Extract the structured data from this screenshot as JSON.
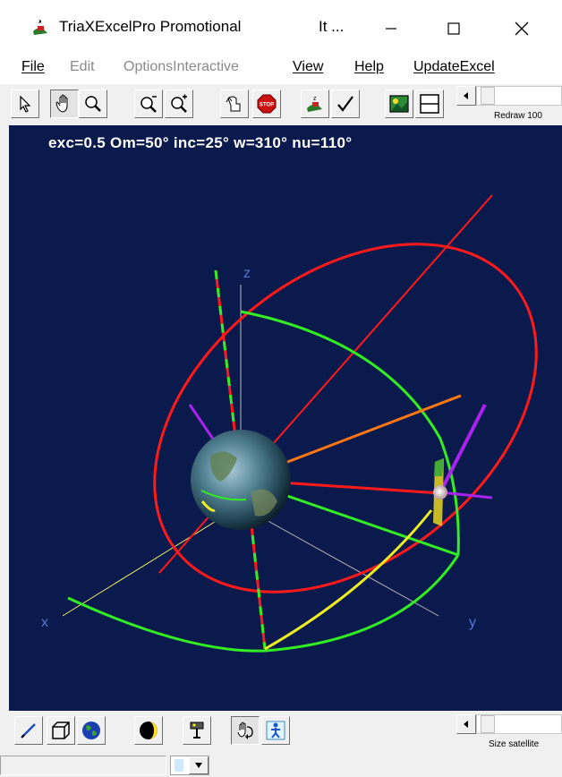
{
  "window": {
    "title": "TriaXExcelPro Promotional",
    "title_extra": "It ...",
    "icons": {
      "app": "satellite-app-icon",
      "minimize": "minimize-icon",
      "maximize": "maximize-icon",
      "close": "close-icon"
    }
  },
  "menu": {
    "file": "File",
    "edit": "Edit",
    "options": "OptionsInteractive",
    "view": "View",
    "help": "Help",
    "update": "UpdateExcel"
  },
  "toolbar": {
    "redraw_label": "Redraw 100",
    "icons": [
      "pointer-icon",
      "hand-icon",
      "magnifier-icon",
      "zoom-out-icon",
      "zoom-in-icon",
      "rotate-icon",
      "stop-icon",
      "satellite-icon",
      "check-icon",
      "picture-icon",
      "split-view-icon"
    ]
  },
  "viewport": {
    "params_text": "exc=0.5 Om=50° inc=25° w=310° nu=110°",
    "axis_x": "x",
    "axis_y": "y",
    "axis_z": "z",
    "colors": {
      "background": "#0b1a4d",
      "orbit": "#ff1a1a",
      "equator": "#33ee22",
      "node": "#ff7711",
      "track": "#eeee22",
      "normal": "#aa22ee"
    }
  },
  "bottom_toolbar": {
    "size_label": "Size satellite",
    "icons": [
      "pen-icon",
      "cube-icon",
      "globe-icon",
      "moon-icon",
      "projector-icon",
      "hand-rotate-icon",
      "person-icon"
    ]
  }
}
